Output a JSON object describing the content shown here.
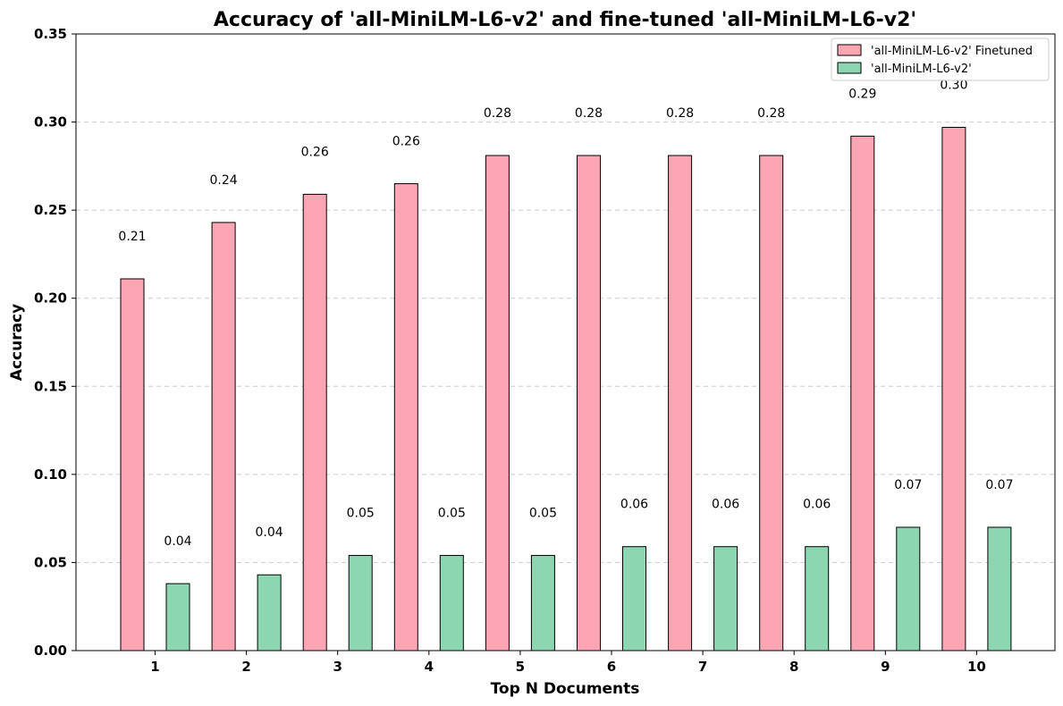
{
  "chart_data": {
    "type": "bar",
    "title": "Accuracy of 'all-MiniLM-L6-v2' and fine-tuned 'all-MiniLM-L6-v2'",
    "xlabel": "Top N Documents",
    "ylabel": "Accuracy",
    "categories": [
      "1",
      "2",
      "3",
      "4",
      "5",
      "6",
      "7",
      "8",
      "9",
      "10"
    ],
    "ylim": [
      0,
      0.35
    ],
    "yticks": [
      "0.00",
      "0.05",
      "0.10",
      "0.15",
      "0.20",
      "0.25",
      "0.30",
      "0.35"
    ],
    "grid": "horizontal dashed",
    "legend_position": "top-right",
    "series": [
      {
        "name": "'all-MiniLM-L6-v2' Finetuned",
        "color": "#fba6b2",
        "values": [
          0.211,
          0.243,
          0.259,
          0.265,
          0.281,
          0.281,
          0.281,
          0.281,
          0.292,
          0.297
        ],
        "labels": [
          "0.21",
          "0.24",
          "0.26",
          "0.26",
          "0.28",
          "0.28",
          "0.28",
          "0.28",
          "0.29",
          "0.30"
        ]
      },
      {
        "name": "'all-MiniLM-L6-v2'",
        "color": "#8dd6b2",
        "values": [
          0.038,
          0.043,
          0.054,
          0.054,
          0.054,
          0.059,
          0.059,
          0.059,
          0.07,
          0.07
        ],
        "labels": [
          "0.04",
          "0.04",
          "0.05",
          "0.05",
          "0.05",
          "0.06",
          "0.06",
          "0.06",
          "0.07",
          "0.07"
        ]
      }
    ]
  }
}
